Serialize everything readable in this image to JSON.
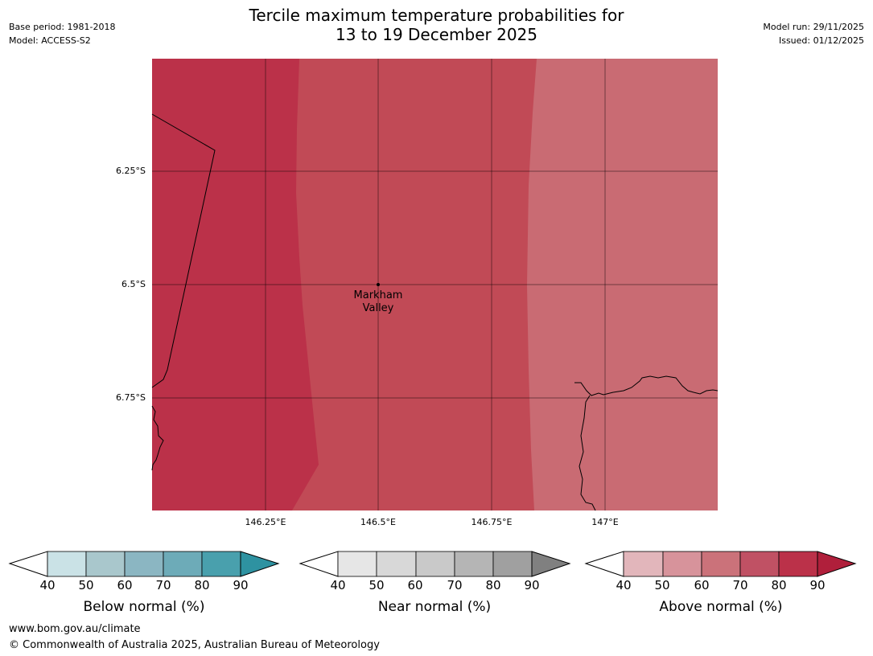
{
  "header": {
    "title_line1": "Tercile maximum temperature probabilities for",
    "title_line2": "13 to 19 December 2025",
    "base_period": "Base period: 1981-2018",
    "model": "Model: ACCESS-S2",
    "model_run": "Model run: 29/11/2025",
    "issued": "Issued: 01/12/2025"
  },
  "map": {
    "location_label_line1": "Markham",
    "location_label_line2": "Valley",
    "lat_labels": [
      "6.25°S",
      "6.5°S",
      "6.75°S"
    ],
    "lon_labels": [
      "146.25°E",
      "146.5°E",
      "146.75°E",
      "147°E"
    ],
    "zones": [
      {
        "name": "west",
        "category": "Above normal",
        "range": "80-90",
        "color": "#bb3149"
      },
      {
        "name": "central",
        "category": "Above normal",
        "range": "70-80",
        "color": "#c14a56"
      },
      {
        "name": "east",
        "category": "Above normal",
        "range": "60-70",
        "color": "#c96b73"
      }
    ]
  },
  "legends": [
    {
      "title": "Below normal (%)",
      "ticks": [
        "40",
        "50",
        "60",
        "70",
        "80",
        "90"
      ],
      "colors": [
        "#ffffff",
        "#cae2e6",
        "#a9c7cc",
        "#8bb6c2",
        "#6dabb8",
        "#49a0ad",
        "#2e92a1"
      ]
    },
    {
      "title": "Near normal (%)",
      "ticks": [
        "40",
        "50",
        "60",
        "70",
        "80",
        "90"
      ],
      "colors": [
        "#ffffff",
        "#e6e6e6",
        "#d8d8d8",
        "#c9c9c9",
        "#b5b5b5",
        "#a0a0a0",
        "#808080"
      ]
    },
    {
      "title": "Above normal (%)",
      "ticks": [
        "40",
        "50",
        "60",
        "70",
        "80",
        "90"
      ],
      "colors": [
        "#ffffff",
        "#e2b6bb",
        "#d7939b",
        "#cb727a",
        "#c05164",
        "#bb3149",
        "#b01f3b"
      ]
    }
  ],
  "footer": {
    "url": "www.bom.gov.au/climate",
    "copyright": "© Commonwealth of Australia 2025, Australian Bureau of Meteorology"
  }
}
